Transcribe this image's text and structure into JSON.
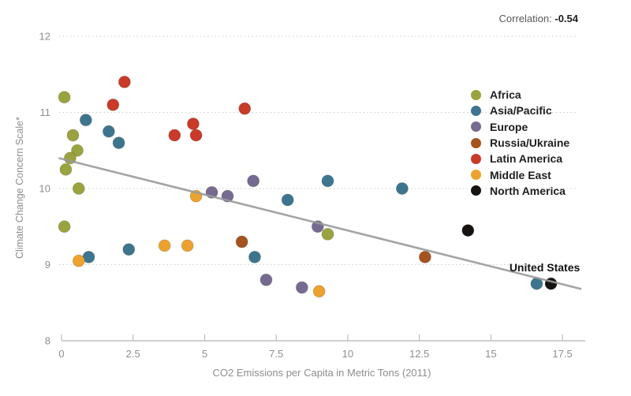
{
  "header": {
    "correlation_label": "Correlation:",
    "correlation_value": "-0.54"
  },
  "chart_data": {
    "type": "scatter",
    "title": "",
    "xlabel": "CO2 Emissions per Capita in Metric Tons (2011)",
    "ylabel": "Climate Change Concern Scale*",
    "xlim": [
      0,
      18.3
    ],
    "ylim": [
      8,
      12
    ],
    "x_ticks": [
      "0",
      "2.5",
      "5",
      "7.5",
      "10",
      "12.5",
      "15",
      "17.5"
    ],
    "y_ticks": [
      "8",
      "9",
      "10",
      "11",
      "12"
    ],
    "grid": "horizontal-dotted",
    "legend_position": "upper-right",
    "correlation": -0.54,
    "trend_line": {
      "x1": -0.1,
      "y1": 10.4,
      "x2": 18.16,
      "y2": 8.68,
      "color": "#9a9a9a"
    },
    "series": [
      {
        "name": "Africa",
        "color": "#9aa33f",
        "points": [
          [
            0.1,
            11.2
          ],
          [
            0.4,
            10.7
          ],
          [
            0.55,
            10.5
          ],
          [
            0.3,
            10.4
          ],
          [
            0.15,
            10.25
          ],
          [
            0.6,
            10.0
          ],
          [
            0.1,
            9.5
          ],
          [
            9.3,
            9.4
          ]
        ]
      },
      {
        "name": "Asia/Pacific",
        "color": "#3e758e",
        "points": [
          [
            0.85,
            10.9
          ],
          [
            1.65,
            10.75
          ],
          [
            2.0,
            10.6
          ],
          [
            9.3,
            10.1
          ],
          [
            11.9,
            10.0
          ],
          [
            7.9,
            9.85
          ],
          [
            2.35,
            9.2
          ],
          [
            0.95,
            9.1
          ],
          [
            6.75,
            9.1
          ],
          [
            16.6,
            8.75
          ]
        ]
      },
      {
        "name": "Europe",
        "color": "#776a90",
        "points": [
          [
            6.7,
            10.1
          ],
          [
            5.25,
            9.95
          ],
          [
            5.8,
            9.9
          ],
          [
            8.95,
            9.5
          ],
          [
            7.15,
            8.8
          ],
          [
            8.4,
            8.7
          ]
        ]
      },
      {
        "name": "Russia/Ukraine",
        "color": "#a5531f",
        "points": [
          [
            6.3,
            9.3
          ],
          [
            12.7,
            9.1
          ]
        ]
      },
      {
        "name": "Latin America",
        "color": "#c93a28",
        "points": [
          [
            2.2,
            11.4
          ],
          [
            1.8,
            11.1
          ],
          [
            6.4,
            11.05
          ],
          [
            4.6,
            10.85
          ],
          [
            3.95,
            10.7
          ],
          [
            4.7,
            10.7
          ]
        ]
      },
      {
        "name": "Middle East",
        "color": "#eda22f",
        "points": [
          [
            4.7,
            9.9
          ],
          [
            3.6,
            9.25
          ],
          [
            4.4,
            9.25
          ],
          [
            0.6,
            9.05
          ],
          [
            9.0,
            8.65
          ]
        ]
      },
      {
        "name": "North America",
        "color": "#161311",
        "points": [
          [
            14.2,
            9.45
          ],
          [
            17.1,
            8.75
          ]
        ]
      }
    ],
    "annotations": [
      {
        "text": "United States",
        "x": 17.1,
        "y": 8.75
      }
    ]
  },
  "colors": {
    "grid": "#cccccc",
    "axis": "#b3b3b3",
    "tick_label": "#8e8e8e",
    "axis_title": "#8e8e8e"
  }
}
